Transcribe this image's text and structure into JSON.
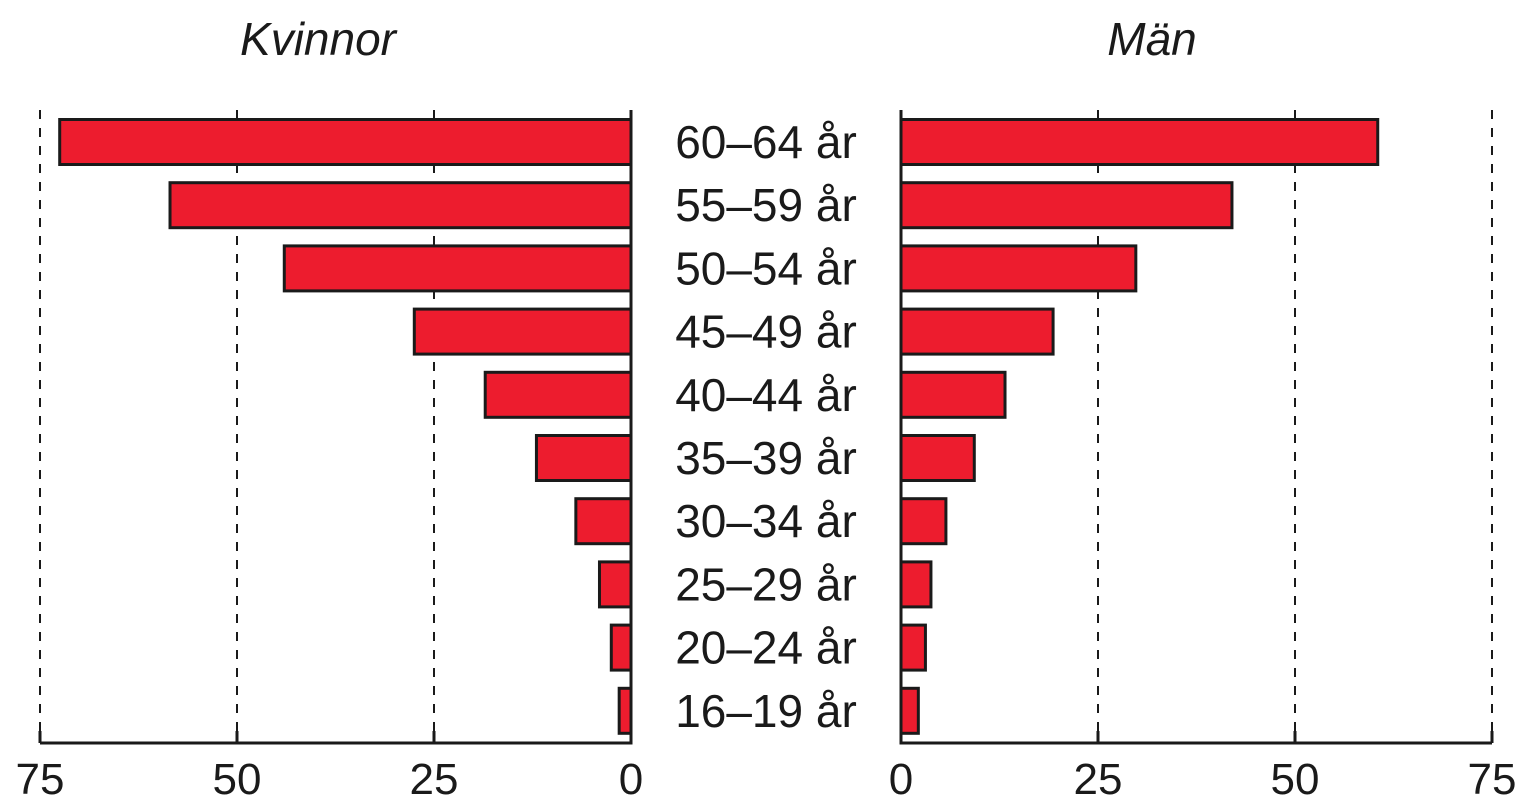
{
  "chart_data": {
    "type": "bar",
    "orientation": "horizontal",
    "categories": [
      "60–64 år",
      "55–59 år",
      "50–54 år",
      "45–49 år",
      "40–44 år",
      "35–39 år",
      "30–34 år",
      "25–29 år",
      "20–24 år",
      "16–19 år"
    ],
    "series": [
      {
        "name": "Kvinnor",
        "values": [
          72.5,
          58.5,
          44,
          27.5,
          18.5,
          12,
          7,
          4,
          2.5,
          1.5
        ]
      },
      {
        "name": "Män",
        "values": [
          60.5,
          42,
          29.8,
          19.3,
          13.2,
          9.3,
          5.7,
          3.8,
          3.1,
          2.2
        ]
      }
    ],
    "xlim": [
      0,
      75
    ],
    "ticks": [
      75,
      50,
      25,
      0
    ],
    "ticks_right": [
      0,
      25,
      50,
      75
    ],
    "grid": true,
    "bar_color": "#ed1c2e",
    "text_color": "#1a1a1a"
  }
}
